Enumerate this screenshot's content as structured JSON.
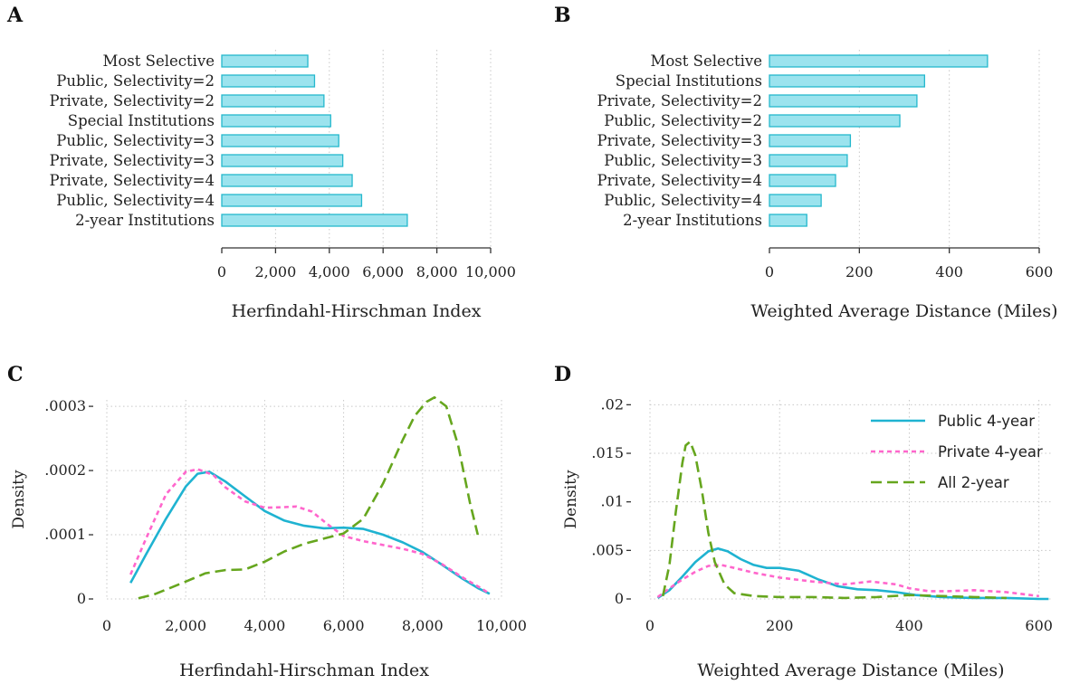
{
  "colors": {
    "public": "#1fb3d1",
    "private": "#ff66cc",
    "twoyear": "#66a61e",
    "bar_fill": "#9be3ee",
    "bar_stroke": "#25b8cd"
  },
  "chart_data": [
    {
      "panel": "A",
      "type": "bar",
      "orientation": "horizontal",
      "categories": [
        "Most Selective",
        "Public, Selectivity=2",
        "Private, Selectivity=2",
        "Special Institutions",
        "Public, Selectivity=3",
        "Private, Selectivity=3",
        "Private, Selectivity=4",
        "Public, Selectivity=4",
        "2-year Institutions"
      ],
      "values": [
        3200,
        3450,
        3800,
        4050,
        4350,
        4500,
        4850,
        5200,
        6900
      ],
      "xlabel": "Herfindahl-Hirschman Index",
      "xlim": [
        0,
        10000
      ],
      "xticks": [
        0,
        2000,
        4000,
        6000,
        8000,
        10000
      ],
      "xtick_labels": [
        "0",
        "2,000",
        "4,000",
        "6,000",
        "8,000",
        "10,000"
      ],
      "grid": "vertical dotted"
    },
    {
      "panel": "B",
      "type": "bar",
      "orientation": "horizontal",
      "categories": [
        "Most Selective",
        "Special Institutions",
        "Private, Selectivity=2",
        "Public, Selectivity=2",
        "Private, Selectivity=3",
        "Public, Selectivity=3",
        "Private, Selectivity=4",
        "Public, Selectivity=4",
        "2-year Institutions"
      ],
      "values": [
        485,
        345,
        328,
        290,
        180,
        173,
        147,
        115,
        83
      ],
      "xlabel": "Weighted Average Distance (Miles)",
      "xlim": [
        0,
        600
      ],
      "xticks": [
        0,
        200,
        400,
        600
      ],
      "xtick_labels": [
        "0",
        "200",
        "400",
        "600"
      ],
      "grid": "vertical dotted"
    },
    {
      "panel": "C",
      "type": "line",
      "xlabel": "Herfindahl-Hirschman Index",
      "ylabel": "Density",
      "xlim": [
        0,
        10000
      ],
      "ylim": [
        0,
        0.00031
      ],
      "xticks": [
        0,
        2000,
        4000,
        6000,
        8000,
        10000
      ],
      "xtick_labels": [
        "0",
        "2,000",
        "4,000",
        "6,000",
        "8,000",
        "10,000"
      ],
      "yticks": [
        0,
        0.0001,
        0.0002,
        0.0003
      ],
      "ytick_labels": [
        "0",
        ".0001",
        ".0002",
        ".0003"
      ],
      "grid": "dotted",
      "series": [
        {
          "key": "public",
          "dash": "solid",
          "x": [
            600,
            1000,
            1500,
            2000,
            2300,
            2600,
            3000,
            3500,
            4000,
            4500,
            5000,
            5500,
            6000,
            6500,
            7000,
            7500,
            8000,
            8500,
            9000,
            9400,
            9700
          ],
          "y": [
            2.5e-05,
            7e-05,
            0.000125,
            0.000175,
            0.000195,
            0.000198,
            0.000183,
            0.00016,
            0.000137,
            0.000122,
            0.000114,
            0.00011,
            0.000111,
            0.000109,
            0.0001,
            8.8e-05,
            7.3e-05,
            5.3e-05,
            3.2e-05,
            1.7e-05,
            8e-06
          ]
        },
        {
          "key": "private",
          "dash": "short",
          "x": [
            600,
            1000,
            1500,
            2000,
            2300,
            2700,
            3000,
            3500,
            4000,
            4500,
            4800,
            5200,
            5600,
            6000,
            6500,
            7000,
            7500,
            8000,
            8500,
            9000,
            9500,
            9700
          ],
          "y": [
            3.8e-05,
            9.5e-05,
            0.000163,
            0.000198,
            0.000202,
            0.000193,
            0.000174,
            0.000152,
            0.000142,
            0.000143,
            0.000144,
            0.000136,
            0.000116,
            9.8e-05,
            9e-05,
            8.4e-05,
            7.8e-05,
            7e-05,
            5.4e-05,
            3.4e-05,
            1.6e-05,
            8e-06
          ]
        },
        {
          "key": "twoyear",
          "dash": "long",
          "x": [
            800,
            1200,
            1600,
            2000,
            2500,
            3000,
            3500,
            4000,
            4500,
            5000,
            5500,
            6000,
            6500,
            7000,
            7500,
            7800,
            8100,
            8300,
            8600,
            8900,
            9200,
            9400
          ],
          "y": [
            1e-06,
            7e-06,
            1.7e-05,
            2.7e-05,
            4e-05,
            4.5e-05,
            4.6e-05,
            5.8e-05,
            7.4e-05,
            8.6e-05,
            9.4e-05,
            0.000102,
            0.000125,
            0.00018,
            0.000248,
            0.000285,
            0.000307,
            0.000314,
            0.0003,
            0.00024,
            0.00015,
            0.0001
          ]
        }
      ]
    },
    {
      "panel": "D",
      "type": "line",
      "xlabel": "Weighted Average Distance (Miles)",
      "ylabel": "Density",
      "xlim": [
        0,
        620
      ],
      "ylim": [
        0,
        0.0205
      ],
      "xticks": [
        0,
        200,
        400,
        600
      ],
      "xtick_labels": [
        "0",
        "200",
        "400",
        "600"
      ],
      "yticks": [
        0,
        0.005,
        0.01,
        0.015,
        0.02
      ],
      "ytick_labels": [
        "0",
        ".005",
        ".01",
        ".015",
        ".02"
      ],
      "grid": "dotted",
      "legend": {
        "position": "top-right",
        "entries": [
          "Public 4-year",
          "Private 4-year",
          "All 2-year"
        ]
      },
      "series": [
        {
          "key": "public",
          "name": "Public 4-year",
          "dash": "solid",
          "x": [
            12,
            30,
            50,
            70,
            90,
            105,
            120,
            140,
            160,
            180,
            200,
            230,
            260,
            290,
            320,
            350,
            380,
            410,
            450,
            500,
            550,
            600,
            615
          ],
          "y": [
            0.0001,
            0.0009,
            0.0023,
            0.0038,
            0.0049,
            0.0052,
            0.0049,
            0.0041,
            0.0035,
            0.0032,
            0.0032,
            0.0029,
            0.002,
            0.0013,
            0.001,
            0.0009,
            0.0007,
            0.0004,
            0.0002,
            0.0001,
            0.0001,
            0.0,
            0.0
          ]
        },
        {
          "key": "private",
          "name": "Private 4-year",
          "dash": "short",
          "x": [
            12,
            30,
            50,
            70,
            90,
            110,
            130,
            160,
            200,
            250,
            300,
            340,
            380,
            400,
            430,
            460,
            500,
            550,
            600
          ],
          "y": [
            0.0002,
            0.0011,
            0.002,
            0.0028,
            0.0034,
            0.0035,
            0.0032,
            0.0027,
            0.0022,
            0.0018,
            0.0015,
            0.0018,
            0.0015,
            0.0011,
            0.0008,
            0.0008,
            0.0009,
            0.0007,
            0.0003
          ]
        },
        {
          "key": "twoyear",
          "name": "All 2-year",
          "dash": "long",
          "x": [
            20,
            30,
            40,
            50,
            55,
            62,
            70,
            80,
            90,
            100,
            115,
            130,
            160,
            200,
            250,
            300,
            350,
            400,
            450,
            500,
            550
          ],
          "y": [
            0.0003,
            0.0035,
            0.009,
            0.014,
            0.0158,
            0.0162,
            0.0148,
            0.0112,
            0.0068,
            0.0038,
            0.0015,
            0.0006,
            0.0003,
            0.0002,
            0.0002,
            0.0001,
            0.0002,
            0.0004,
            0.0003,
            0.0002,
            0.0001
          ]
        }
      ]
    }
  ]
}
